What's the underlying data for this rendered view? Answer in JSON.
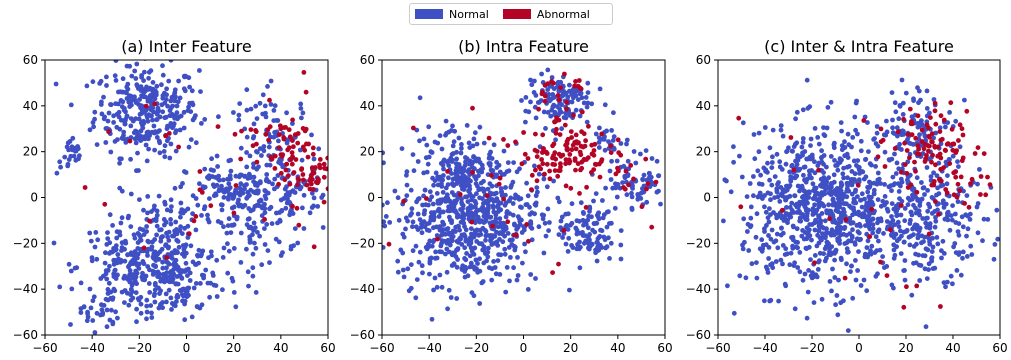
{
  "legend": {
    "items": [
      {
        "label": "Normal",
        "color": "#3f4fc4"
      },
      {
        "label": "Abnormal",
        "color": "#b40426"
      }
    ]
  },
  "chart_data": [
    {
      "type": "scatter",
      "title": "(a) Inter Feature",
      "xlim": [
        -60,
        60
      ],
      "ylim": [
        -60,
        60
      ],
      "xticks": [
        -60,
        -40,
        -20,
        0,
        20,
        40,
        60
      ],
      "yticks": [
        -60,
        -40,
        -20,
        0,
        20,
        40,
        60
      ],
      "grid": false,
      "series": [
        {
          "name": "Normal",
          "color": "#3f4fc4",
          "clusters": [
            {
              "center": [
                -17,
                38
              ],
              "spread": [
                11,
                10
              ],
              "count": 320
            },
            {
              "center": [
                -49,
                18
              ],
              "spread": [
                3,
                4
              ],
              "count": 25
            },
            {
              "center": [
                -22,
                -30
              ],
              "spread": [
                12,
                10
              ],
              "count": 240
            },
            {
              "center": [
                -4,
                -34
              ],
              "spread": [
                9,
                10
              ],
              "count": 160
            },
            {
              "center": [
                -10,
                -10
              ],
              "spread": [
                8,
                6
              ],
              "count": 60
            },
            {
              "center": [
                -37,
                -50
              ],
              "spread": [
                4,
                4
              ],
              "count": 25
            },
            {
              "center": [
                20,
                4
              ],
              "spread": [
                10,
                5
              ],
              "count": 90
            },
            {
              "center": [
                25,
                -10
              ],
              "spread": [
                9,
                12
              ],
              "count": 110
            },
            {
              "center": [
                38,
                22
              ],
              "spread": [
                9,
                12
              ],
              "count": 110
            },
            {
              "center": [
                46,
                -2
              ],
              "spread": [
                6,
                8
              ],
              "count": 60
            }
          ]
        },
        {
          "name": "Abnormal",
          "color": "#b40426",
          "clusters": [
            {
              "center": [
                45,
                20
              ],
              "spread": [
                5,
                10
              ],
              "count": 55
            },
            {
              "center": [
                55,
                8
              ],
              "spread": [
                3,
                4
              ],
              "count": 30
            },
            {
              "center": [
                30,
                25
              ],
              "spread": [
                6,
                6
              ],
              "count": 15
            },
            {
              "center": [
                0,
                0
              ],
              "spread": [
                30,
                30
              ],
              "count": 30
            }
          ]
        }
      ]
    },
    {
      "type": "scatter",
      "title": "(b) Intra Feature",
      "xlim": [
        -60,
        60
      ],
      "ylim": [
        -60,
        60
      ],
      "xticks": [
        -60,
        -40,
        -20,
        0,
        20,
        40,
        60
      ],
      "yticks": [
        -60,
        -40,
        -20,
        0,
        20,
        40,
        60
      ],
      "grid": false,
      "series": [
        {
          "name": "Normal",
          "color": "#3f4fc4",
          "clusters": [
            {
              "center": [
                -23,
                -8
              ],
              "spread": [
                15,
                15
              ],
              "count": 720
            },
            {
              "center": [
                -28,
                15
              ],
              "spread": [
                8,
                8
              ],
              "count": 80
            },
            {
              "center": [
                15,
                43
              ],
              "spread": [
                7,
                6
              ],
              "count": 130
            },
            {
              "center": [
                27,
                -15
              ],
              "spread": [
                6,
                7
              ],
              "count": 110
            },
            {
              "center": [
                48,
                7
              ],
              "spread": [
                6,
                6
              ],
              "count": 75
            },
            {
              "center": [
                37,
                25
              ],
              "spread": [
                4,
                3
              ],
              "count": 25
            }
          ]
        },
        {
          "name": "Abnormal",
          "color": "#b40426",
          "clusters": [
            {
              "center": [
                18,
                20
              ],
              "spread": [
                9,
                6
              ],
              "count": 115
            },
            {
              "center": [
                15,
                45
              ],
              "spread": [
                6,
                6
              ],
              "count": 25
            },
            {
              "center": [
                -10,
                0
              ],
              "spread": [
                25,
                22
              ],
              "count": 35
            },
            {
              "center": [
                48,
                8
              ],
              "spread": [
                5,
                5
              ],
              "count": 12
            }
          ]
        }
      ]
    },
    {
      "type": "scatter",
      "title": "(c) Inter & Intra Feature",
      "xlim": [
        -60,
        60
      ],
      "ylim": [
        -60,
        60
      ],
      "xticks": [
        -60,
        -40,
        -20,
        0,
        20,
        40,
        60
      ],
      "yticks": [
        -60,
        -40,
        -20,
        0,
        20,
        40,
        60
      ],
      "grid": false,
      "series": [
        {
          "name": "Normal",
          "color": "#3f4fc4",
          "clusters": [
            {
              "center": [
                -15,
                -5
              ],
              "spread": [
                17,
                17
              ],
              "count": 850
            },
            {
              "center": [
                30,
                -10
              ],
              "spread": [
                12,
                12
              ],
              "count": 260
            },
            {
              "center": [
                25,
                30
              ],
              "spread": [
                8,
                9
              ],
              "count": 110
            }
          ]
        },
        {
          "name": "Abnormal",
          "color": "#b40426",
          "clusters": [
            {
              "center": [
                32,
                22
              ],
              "spread": [
                9,
                10
              ],
              "count": 95
            },
            {
              "center": [
                -5,
                0
              ],
              "spread": [
                25,
                22
              ],
              "count": 30
            },
            {
              "center": [
                45,
                5
              ],
              "spread": [
                6,
                6
              ],
              "count": 15
            }
          ]
        }
      ]
    }
  ]
}
